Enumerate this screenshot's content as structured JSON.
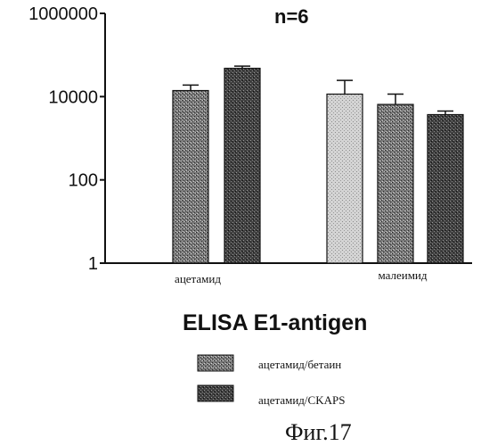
{
  "chart_data": {
    "type": "bar",
    "scale": "log",
    "ylim": [
      1,
      1000000
    ],
    "y_ticks": [
      {
        "value": 1,
        "label": "1"
      },
      {
        "value": 100,
        "label": "100"
      },
      {
        "value": 10000,
        "label": "10000"
      },
      {
        "value": 1000000,
        "label": "1000000"
      }
    ],
    "annotation": "n=6",
    "title": "ELISA E1-antigen",
    "caption": "Фиг.17",
    "groups": [
      "ацетамид",
      "малеимид"
    ],
    "bars": [
      {
        "group": 0,
        "series": 1,
        "value": 14000,
        "error": 5000
      },
      {
        "group": 0,
        "series": 2,
        "value": 48000,
        "error": 6000
      },
      {
        "group": 1,
        "series": 0,
        "value": 11500,
        "error": 13000
      },
      {
        "group": 1,
        "series": 1,
        "value": 6500,
        "error": 5000
      },
      {
        "group": 1,
        "series": 2,
        "value": 3700,
        "error": 800
      }
    ],
    "legend": [
      {
        "label": "ацетамид/бетаин",
        "pattern": "medium"
      },
      {
        "label": "ацетамид/CKAPS",
        "pattern": "dark"
      }
    ],
    "patterns": {
      "0": "light",
      "1": "medium",
      "2": "dark"
    },
    "grid": false,
    "colors": {
      "axis": "#111111",
      "light": "#c8c8c8",
      "medium": "#6e6e6e",
      "dark": "#3a3a3a"
    }
  }
}
